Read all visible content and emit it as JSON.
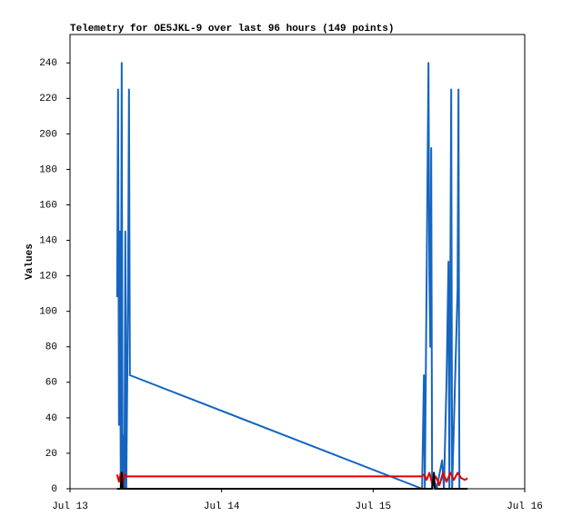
{
  "chart_data": {
    "type": "line",
    "title": "Telemetry for OE5JKL-9 over last 96 hours (149 points)",
    "y_label": "Values",
    "xlim": [
      13,
      16
    ],
    "xticks": [
      {
        "value": 13,
        "label": "Jul 13"
      },
      {
        "value": 14,
        "label": "Jul 14"
      },
      {
        "value": 15,
        "label": "Jul 15"
      },
      {
        "value": 16,
        "label": "Jul 16"
      }
    ],
    "ylim": [
      0,
      256
    ],
    "yticks": [
      0,
      20,
      40,
      60,
      80,
      100,
      120,
      140,
      160,
      180,
      200,
      220,
      240
    ],
    "series": [
      {
        "color": "#1565c0",
        "x": [
          13.311,
          13.317,
          13.323,
          13.329,
          13.335,
          13.341,
          13.347,
          13.353,
          13.359,
          13.365,
          13.371,
          13.383,
          13.389,
          13.395,
          15.323,
          15.335,
          15.341,
          15.365,
          15.371,
          15.377,
          15.383,
          15.389,
          15.401,
          15.419,
          15.455,
          15.467,
          15.485,
          15.497,
          15.503,
          15.509,
          15.515,
          15.521,
          15.557,
          15.563,
          15.569
        ],
        "values": [
          108,
          225,
          36,
          145,
          0,
          240,
          0,
          30,
          0,
          145,
          0,
          112,
          225,
          64,
          0,
          64,
          0,
          240,
          120,
          80,
          192,
          0,
          5,
          0,
          16,
          0,
          64,
          128,
          0,
          112,
          225,
          0,
          112,
          225,
          0
        ]
      },
      {
        "color": "#e00000",
        "x": [
          13.311,
          13.323,
          13.335,
          13.347,
          13.359,
          13.371,
          13.395,
          15.323,
          15.335,
          15.353,
          15.371,
          15.389,
          15.413,
          15.437,
          15.461,
          15.485,
          15.509,
          15.533,
          15.557,
          15.581,
          15.605,
          15.623
        ],
        "values": [
          8,
          4,
          9,
          2,
          8,
          7,
          7,
          7,
          8,
          5,
          9,
          3,
          7,
          2,
          9,
          4,
          9,
          5,
          9,
          6,
          5,
          6
        ]
      },
      {
        "color": "#000000",
        "x": [
          13.311,
          13.335,
          13.341,
          13.347,
          13.395,
          15.323,
          15.389,
          15.401,
          15.407,
          15.623
        ],
        "values": [
          0,
          0,
          9,
          0,
          0,
          0,
          0,
          9,
          0,
          0
        ]
      }
    ]
  }
}
